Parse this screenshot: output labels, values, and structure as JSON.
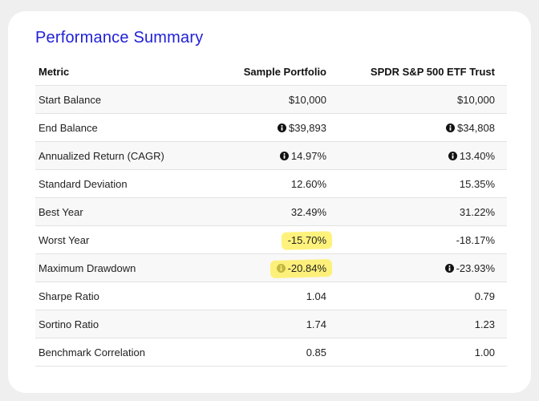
{
  "header": {
    "title": "Performance Summary"
  },
  "table": {
    "columns": [
      "Metric",
      "Sample Portfolio",
      "SPDR S&P 500 ETF Trust"
    ],
    "rows": [
      {
        "cells": [
          "Start Balance",
          "$10,000",
          "$10,000"
        ]
      },
      {
        "cells": [
          "End Balance",
          "$39,893",
          "$34,808"
        ],
        "info": true
      },
      {
        "cells": [
          "Annualized Return (CAGR)",
          "14.97%",
          "13.40%"
        ],
        "info": true
      },
      {
        "cells": [
          "Standard Deviation",
          "12.60%",
          "15.35%"
        ]
      },
      {
        "cells": [
          "Best Year",
          "32.49%",
          "31.22%"
        ]
      },
      {
        "cells": [
          "Worst Year",
          "-15.70%",
          "-18.17%"
        ],
        "highlight": true
      },
      {
        "cells": [
          "Maximum Drawdown",
          "-20.84%",
          "-23.93%"
        ],
        "info": true,
        "highlight": true
      },
      {
        "cells": [
          "Sharpe Ratio",
          "1.04",
          "0.79"
        ]
      },
      {
        "cells": [
          "Sortino Ratio",
          "1.74",
          "1.23"
        ]
      },
      {
        "cells": [
          "Benchmark Correlation",
          "0.85",
          "1.00"
        ]
      }
    ]
  }
}
